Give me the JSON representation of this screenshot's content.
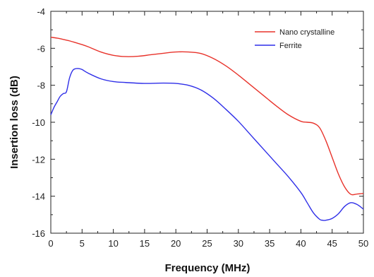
{
  "chart_data": {
    "type": "line",
    "title": "",
    "xlabel": "Frequency (MHz)",
    "ylabel": "Insertion loss (dB)",
    "xlim": [
      0,
      50
    ],
    "ylim": [
      -16,
      -4
    ],
    "x_ticks": [
      0,
      5,
      10,
      15,
      20,
      25,
      30,
      35,
      40,
      45,
      50
    ],
    "y_ticks": [
      -16,
      -14,
      -12,
      -10,
      -8,
      -6,
      -4
    ],
    "grid": false,
    "legend_position": "top-right",
    "series": [
      {
        "name": "Nano crystalline",
        "color": "#e8332b",
        "x": [
          0,
          1,
          2,
          3,
          4,
          5,
          6,
          8,
          10,
          12,
          14,
          16,
          18,
          20,
          22,
          24,
          26,
          28,
          30,
          32,
          34,
          36,
          38,
          40,
          41,
          42,
          43,
          44,
          45,
          46,
          47,
          48,
          49,
          50
        ],
        "y": [
          -5.4,
          -5.45,
          -5.52,
          -5.6,
          -5.7,
          -5.8,
          -5.92,
          -6.2,
          -6.38,
          -6.45,
          -6.43,
          -6.35,
          -6.27,
          -6.2,
          -6.2,
          -6.28,
          -6.55,
          -6.95,
          -7.45,
          -8.0,
          -8.55,
          -9.1,
          -9.6,
          -9.95,
          -10.0,
          -10.05,
          -10.3,
          -11.0,
          -11.9,
          -12.8,
          -13.5,
          -13.9,
          -13.88,
          -13.85
        ]
      },
      {
        "name": "Ferrite",
        "color": "#2f2fe8",
        "x": [
          0,
          0.5,
          1,
          1.5,
          2,
          2.5,
          3,
          3.5,
          4,
          4.5,
          5,
          6,
          8,
          10,
          12,
          15,
          18,
          20,
          22,
          24,
          26,
          28,
          30,
          32,
          34,
          36,
          38,
          40,
          41,
          42,
          43,
          43.5,
          44,
          45,
          46,
          47,
          48,
          49,
          50
        ],
        "y": [
          -9.6,
          -9.2,
          -8.9,
          -8.6,
          -8.45,
          -8.35,
          -7.6,
          -7.2,
          -7.1,
          -7.1,
          -7.15,
          -7.35,
          -7.65,
          -7.8,
          -7.85,
          -7.9,
          -7.88,
          -7.9,
          -8.0,
          -8.25,
          -8.7,
          -9.3,
          -9.95,
          -10.7,
          -11.45,
          -12.2,
          -12.95,
          -13.8,
          -14.35,
          -14.9,
          -15.25,
          -15.3,
          -15.3,
          -15.2,
          -14.95,
          -14.55,
          -14.35,
          -14.45,
          -14.7
        ]
      }
    ]
  }
}
